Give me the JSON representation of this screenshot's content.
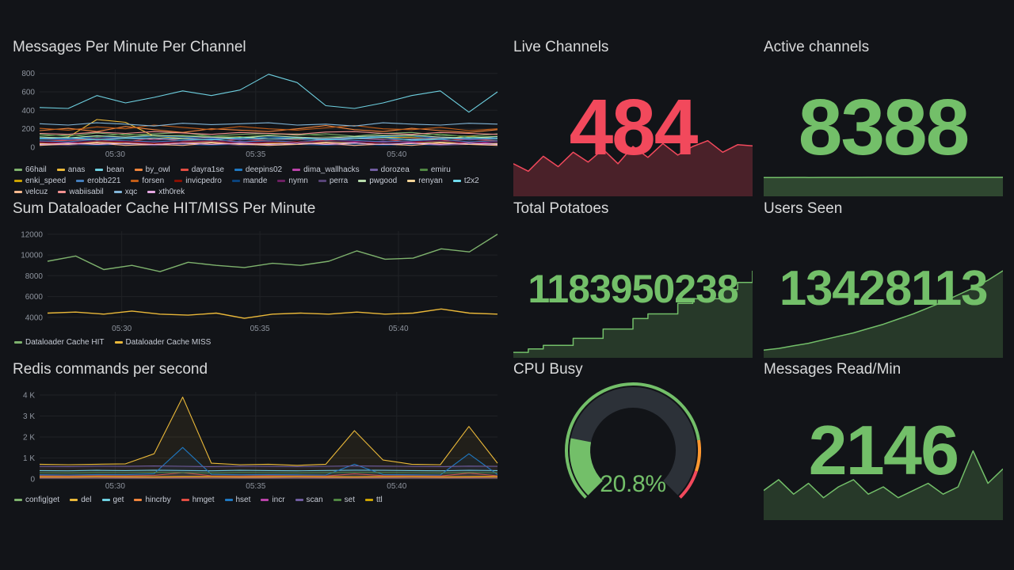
{
  "chart_data": [
    {
      "id": "messages_per_minute",
      "type": "line",
      "title": "Messages Per Minute Per Channel",
      "ylim": [
        0,
        840
      ],
      "yticks": [
        {
          "v": 0,
          "label": "0"
        },
        {
          "v": 200,
          "label": "200"
        },
        {
          "v": 400,
          "label": "400"
        },
        {
          "v": 600,
          "label": "600"
        },
        {
          "v": 800,
          "label": "800"
        }
      ],
      "xticks": [
        {
          "f": 0.165,
          "label": "05:30"
        },
        {
          "f": 0.472,
          "label": "05:35"
        },
        {
          "f": 0.78,
          "label": "05:40"
        }
      ],
      "line_width": 1.1,
      "series": [
        {
          "name": "66hail",
          "color": "#7EB26D",
          "values": [
            140,
            120,
            155,
            130,
            145,
            160,
            120,
            140,
            150,
            130,
            145,
            120,
            150,
            160,
            130,
            120,
            145
          ]
        },
        {
          "name": "anas",
          "color": "#EAB839",
          "values": [
            90,
            110,
            300,
            270,
            120,
            95,
            105,
            115,
            90,
            85,
            100,
            95,
            110,
            105,
            90,
            120,
            100
          ]
        },
        {
          "name": "bean",
          "color": "#6ED0E0",
          "values": [
            430,
            420,
            560,
            480,
            540,
            610,
            560,
            620,
            790,
            700,
            450,
            420,
            480,
            560,
            610,
            380,
            600
          ]
        },
        {
          "name": "by_owl",
          "color": "#EF843C",
          "values": [
            180,
            205,
            170,
            225,
            190,
            160,
            200,
            185,
            170,
            200,
            235,
            190,
            170,
            205,
            180,
            160,
            190
          ]
        },
        {
          "name": "dayra1se",
          "color": "#E24D42",
          "values": [
            65,
            75,
            85,
            60,
            95,
            70,
            60,
            85,
            70,
            60,
            75,
            95,
            85,
            60,
            70,
            85,
            70
          ]
        },
        {
          "name": "deepins02",
          "color": "#1F78C1",
          "values": [
            100,
            90,
            115,
            105,
            120,
            110,
            95,
            90,
            110,
            100,
            90,
            105,
            115,
            120,
            100,
            90,
            105
          ]
        },
        {
          "name": "dima_wallhacks",
          "color": "#BA43A9",
          "values": [
            40,
            55,
            40,
            65,
            50,
            40,
            55,
            65,
            40,
            50,
            40,
            55,
            65,
            50,
            40,
            55,
            40
          ]
        },
        {
          "name": "dorozea",
          "color": "#705DA0",
          "values": [
            90,
            80,
            100,
            95,
            80,
            90,
            105,
            80,
            90,
            80,
            100,
            95,
            80,
            90,
            105,
            80,
            90
          ]
        },
        {
          "name": "emiru",
          "color": "#508642",
          "values": [
            120,
            135,
            110,
            145,
            120,
            130,
            120,
            110,
            135,
            145,
            120,
            110,
            130,
            120,
            145,
            110,
            120
          ]
        },
        {
          "name": "enki_speed",
          "color": "#CCA300",
          "values": [
            30,
            45,
            30,
            55,
            40,
            30,
            45,
            30,
            40,
            55,
            30,
            45,
            30,
            40,
            55,
            40,
            30
          ]
        },
        {
          "name": "erobb221",
          "color": "#447EBC",
          "values": [
            70,
            60,
            85,
            70,
            60,
            75,
            85,
            60,
            70,
            60,
            85,
            75,
            60,
            70,
            85,
            60,
            70
          ]
        },
        {
          "name": "forsen",
          "color": "#C15C17",
          "values": [
            205,
            185,
            220,
            200,
            240,
            215,
            190,
            225,
            200,
            185,
            210,
            235,
            200,
            190,
            215,
            180,
            200
          ]
        },
        {
          "name": "invicpedro",
          "color": "#890F02",
          "values": [
            50,
            40,
            60,
            55,
            40,
            50,
            60,
            40,
            50,
            60,
            55,
            40,
            50,
            60,
            40,
            50,
            60
          ]
        },
        {
          "name": "mande",
          "color": "#0A437C",
          "values": [
            20,
            30,
            20,
            35,
            20,
            30,
            20,
            35,
            20,
            30,
            20,
            35,
            20,
            30,
            20,
            35,
            20
          ]
        },
        {
          "name": "nymn",
          "color": "#6D1F62",
          "values": [
            60,
            50,
            70,
            65,
            50,
            60,
            70,
            50,
            60,
            50,
            70,
            65,
            50,
            60,
            70,
            50,
            60
          ]
        },
        {
          "name": "perra",
          "color": "#584477",
          "values": [
            30,
            20,
            45,
            30,
            20,
            35,
            45,
            20,
            30,
            45,
            30,
            20,
            35,
            45,
            20,
            30,
            45
          ]
        },
        {
          "name": "pwgood",
          "color": "#B7DBAB",
          "values": [
            110,
            100,
            125,
            110,
            130,
            120,
            110,
            100,
            125,
            110,
            100,
            115,
            125,
            130,
            110,
            100,
            115
          ]
        },
        {
          "name": "renyan",
          "color": "#F4D598",
          "values": [
            40,
            30,
            55,
            40,
            30,
            45,
            55,
            30,
            40,
            30,
            55,
            45,
            30,
            40,
            55,
            30,
            40
          ]
        },
        {
          "name": "t2x2",
          "color": "#70DBED",
          "values": [
            90,
            105,
            80,
            95,
            100,
            90,
            80,
            105,
            90,
            100,
            80,
            95,
            105,
            80,
            90,
            105,
            90
          ]
        },
        {
          "name": "velcuz",
          "color": "#F9BA8F",
          "values": [
            20,
            35,
            45,
            20,
            30,
            20,
            45,
            35,
            20,
            30,
            45,
            20,
            35,
            20,
            45,
            30,
            20
          ]
        },
        {
          "name": "wabiisabil",
          "color": "#F29191",
          "values": [
            150,
            140,
            165,
            150,
            170,
            155,
            140,
            160,
            150,
            140,
            165,
            170,
            150,
            140,
            160,
            150,
            140
          ]
        },
        {
          "name": "xqc",
          "color": "#82B5D8",
          "values": [
            255,
            240,
            265,
            250,
            230,
            260,
            245,
            255,
            265,
            240,
            250,
            230,
            265,
            250,
            240,
            260,
            250
          ]
        },
        {
          "name": "xth0rek",
          "color": "#E5A8E2",
          "values": [
            30,
            45,
            30,
            45,
            30,
            45,
            30,
            45,
            30,
            45,
            30,
            45,
            30,
            45,
            30,
            45,
            30
          ]
        }
      ]
    },
    {
      "id": "dataloader_cache",
      "type": "line",
      "title": "Sum Dataloader Cache HIT/MISS Per Minute",
      "ylim": [
        3600,
        12300
      ],
      "yticks": [
        {
          "v": 4000,
          "label": "4000"
        },
        {
          "v": 6000,
          "label": "6000"
        },
        {
          "v": 8000,
          "label": "8000"
        },
        {
          "v": 10000,
          "label": "10000"
        },
        {
          "v": 12000,
          "label": "12000"
        }
      ],
      "xticks": [
        {
          "f": 0.165,
          "label": "05:30"
        },
        {
          "f": 0.472,
          "label": "05:35"
        },
        {
          "f": 0.78,
          "label": "05:40"
        }
      ],
      "line_width": 1.4,
      "series": [
        {
          "name": "Dataloader Cache HIT",
          "color": "#7EB26D",
          "values": [
            9400,
            9900,
            8600,
            9000,
            8400,
            9300,
            9000,
            8800,
            9200,
            9000,
            9400,
            10400,
            9600,
            9700,
            10600,
            10300,
            12000
          ]
        },
        {
          "name": "Dataloader Cache MISS",
          "color": "#EAB839",
          "values": [
            4400,
            4500,
            4300,
            4600,
            4300,
            4200,
            4400,
            3900,
            4300,
            4400,
            4300,
            4500,
            4300,
            4400,
            4800,
            4400,
            4300
          ]
        }
      ]
    },
    {
      "id": "redis_commands",
      "type": "line",
      "title": "Redis commands per second",
      "ylim": [
        0,
        4150
      ],
      "yticks": [
        {
          "v": 0,
          "label": "0"
        },
        {
          "v": 1000,
          "label": "1 K"
        },
        {
          "v": 2000,
          "label": "2 K"
        },
        {
          "v": 3000,
          "label": "3 K"
        },
        {
          "v": 4000,
          "label": "4 K"
        }
      ],
      "xticks": [
        {
          "f": 0.165,
          "label": "05:30"
        },
        {
          "f": 0.472,
          "label": "05:35"
        },
        {
          "f": 0.78,
          "label": "05:40"
        }
      ],
      "line_width": 1.1,
      "fill_opacity": 0.07,
      "series": [
        {
          "name": "config|get",
          "color": "#7EB26D",
          "values": [
            80,
            85,
            90,
            80,
            85,
            90,
            80,
            85,
            90,
            80,
            85,
            90,
            80,
            85,
            90,
            80,
            85
          ]
        },
        {
          "name": "del",
          "color": "#EAB839",
          "values": [
            700,
            680,
            700,
            720,
            1200,
            3900,
            750,
            680,
            700,
            650,
            700,
            2300,
            900,
            700,
            680,
            2500,
            750
          ]
        },
        {
          "name": "get",
          "color": "#6ED0E0",
          "values": [
            400,
            390,
            410,
            400,
            420,
            405,
            390,
            410,
            400,
            390,
            405,
            420,
            410,
            400,
            390,
            410,
            400
          ]
        },
        {
          "name": "hincrby",
          "color": "#EF843C",
          "values": [
            120,
            110,
            130,
            120,
            115,
            125,
            130,
            110,
            120,
            130,
            120,
            110,
            125,
            130,
            110,
            120,
            130
          ]
        },
        {
          "name": "hmget",
          "color": "#E24D42",
          "values": [
            150,
            140,
            160,
            150,
            170,
            300,
            150,
            140,
            160,
            150,
            140,
            250,
            160,
            150,
            140,
            280,
            150
          ]
        },
        {
          "name": "hset",
          "color": "#1F78C1",
          "values": [
            200,
            190,
            210,
            205,
            250,
            1500,
            220,
            200,
            210,
            200,
            190,
            700,
            210,
            200,
            190,
            1200,
            210
          ]
        },
        {
          "name": "incr",
          "color": "#BA43A9",
          "values": [
            60,
            55,
            70,
            60,
            55,
            65,
            70,
            55,
            60,
            70,
            60,
            55,
            65,
            70,
            55,
            60,
            70
          ]
        },
        {
          "name": "scan",
          "color": "#705DA0",
          "values": [
            600,
            590,
            610,
            600,
            620,
            605,
            590,
            610,
            600,
            590,
            605,
            620,
            610,
            600,
            590,
            610,
            600
          ]
        },
        {
          "name": "set",
          "color": "#508642",
          "values": [
            300,
            290,
            310,
            300,
            320,
            305,
            290,
            310,
            300,
            290,
            305,
            320,
            310,
            300,
            290,
            310,
            300
          ]
        },
        {
          "name": "ttl",
          "color": "#CCA300",
          "values": [
            90,
            85,
            100,
            90,
            85,
            95,
            100,
            85,
            90,
            100,
            90,
            85,
            95,
            100,
            85,
            90,
            100
          ]
        }
      ]
    },
    {
      "id": "live_channels",
      "type": "stat",
      "title": "Live Channels",
      "value": "484",
      "color": "#F2495C",
      "sparkline": {
        "min": 0,
        "max": 100,
        "stroke": "#F2495C",
        "fill": "rgba(242,73,92,0.25)",
        "values": [
          55,
          42,
          68,
          50,
          75,
          58,
          80,
          55,
          85,
          66,
          90,
          70,
          85,
          95,
          75,
          88,
          86
        ]
      }
    },
    {
      "id": "active_channels",
      "type": "stat",
      "title": "Active channels",
      "value": "8388",
      "color": "#73BF69",
      "sparkline": {
        "min": 0,
        "max": 8388,
        "stroke": "#73BF69",
        "fill": "rgba(115,191,105,0.3)",
        "values": [
          8300,
          8320,
          8340,
          8330,
          8350,
          8360,
          8350,
          8370,
          8380,
          8370,
          8380,
          8388,
          8380,
          8388,
          8386,
          8388,
          8388
        ]
      }
    },
    {
      "id": "total_potatoes",
      "type": "stat",
      "title": "Total Potatoes",
      "value": "1183950238",
      "color": "#73BF69",
      "sparkline": {
        "min": 0,
        "max": 74,
        "step": true,
        "stroke": "#73BF69",
        "fill": "rgba(115,191,105,0.22)",
        "values": [
          4,
          7,
          10,
          10,
          16,
          16,
          24,
          24,
          33,
          37,
          37,
          46,
          50,
          50,
          58,
          64,
          74
        ]
      }
    },
    {
      "id": "users_seen",
      "type": "stat",
      "title": "Users Seen",
      "value": "13428113",
      "color": "#73BF69",
      "sparkline": {
        "min": 0,
        "max": 100,
        "stroke": "#73BF69",
        "fill": "rgba(115,191,105,0.22)",
        "values": [
          8,
          10,
          13,
          16,
          20,
          24,
          28,
          33,
          38,
          44,
          50,
          57,
          64,
          72,
          80,
          89,
          100
        ]
      }
    },
    {
      "id": "cpu_busy",
      "type": "gauge",
      "title": "CPU Busy",
      "value": "20.8%",
      "percent": 20.8,
      "color": "#73BF69",
      "track_color": "#2c3138",
      "thresholds": [
        {
          "to": 80,
          "color": "#73BF69"
        },
        {
          "to": 90,
          "color": "#FF9830"
        },
        {
          "to": 100,
          "color": "#F2495C"
        }
      ]
    },
    {
      "id": "messages_read_min",
      "type": "stat",
      "title": "Messages Read/Min",
      "value": "2146",
      "color": "#73BF69",
      "sparkline": {
        "min": 0,
        "max": 100,
        "stroke": "#73BF69",
        "fill": "rgba(115,191,105,0.22)",
        "values": [
          40,
          55,
          35,
          50,
          30,
          45,
          55,
          35,
          45,
          30,
          40,
          50,
          35,
          45,
          95,
          50,
          70
        ]
      }
    }
  ]
}
